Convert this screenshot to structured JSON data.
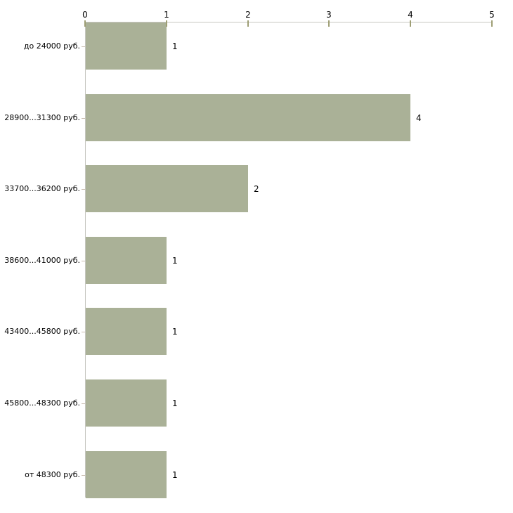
{
  "chart_data": {
    "type": "bar",
    "orientation": "horizontal",
    "title": "",
    "xlabel": "",
    "ylabel": "",
    "categories": [
      "до 24000 руб.",
      "28900...31300 руб.",
      "33700...36200 руб.",
      "38600...41000 руб.",
      "43400...45800 руб.",
      "45800...48300 руб.",
      "от 48300 руб."
    ],
    "values": [
      1,
      4,
      2,
      1,
      1,
      1,
      1
    ],
    "value_labels": [
      "1",
      "4",
      "2",
      "1",
      "1",
      "1",
      "1"
    ],
    "value_axis": {
      "position": "top",
      "min": 0,
      "max": 5,
      "ticks": [
        0,
        1,
        2,
        3,
        4,
        5
      ],
      "tick_labels": [
        "0",
        "1",
        "2",
        "3",
        "4",
        "5"
      ]
    },
    "grid": false,
    "legend": null,
    "colors": {
      "background": "#ffffff",
      "bar_fill": "#aab197",
      "axis_line": "#c6c6c0",
      "value_tick": "#9e9e74",
      "category_tick": "#c8bcae",
      "text": "#000000"
    }
  }
}
